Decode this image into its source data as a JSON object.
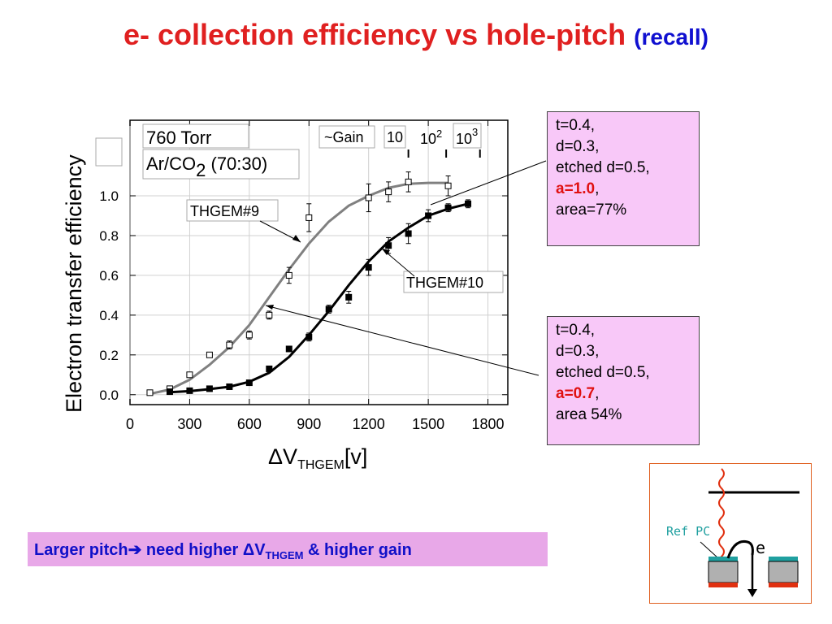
{
  "slide": {
    "title_main": "e- collection efficiency vs hole-pitch",
    "title_recall": "(recall)"
  },
  "info_boxes": [
    {
      "t": "t=0.4,",
      "d": "d=0.3,",
      "etched": "etched d=0.5,",
      "a": "a=1.0",
      "a_suffix": ",",
      "area": "area=77%"
    },
    {
      "t": "t=0.4,",
      "d": "d=0.3,",
      "etched": "etched d=0.5,",
      "a": "a=0.7",
      "a_suffix": ",",
      "area": "area 54%"
    }
  ],
  "conclusion": {
    "part1": "Larger pitch",
    "arrow": "➔",
    "part2": " need higher ",
    "delta": "Δ",
    "v": "V",
    "sub": "THGEM",
    "part3": " & higher gain"
  },
  "diagram": {
    "label": "Ref PC",
    "electron": "e"
  },
  "chart_data": {
    "type": "scatter",
    "xlabel_delta": "Δ",
    "xlabel_v": "V",
    "xlabel_sub": "THGEM",
    "xlabel_unit": "[v]",
    "ylabel": "Electron transfer efficiency",
    "xlim": [
      0,
      1900
    ],
    "ylim": [
      -0.05,
      1.38
    ],
    "x_ticks": [
      0,
      300,
      600,
      900,
      1200,
      1500,
      1800
    ],
    "y_ticks": [
      0.0,
      0.2,
      0.4,
      0.6,
      0.8,
      1.0
    ],
    "y_tick_labels": [
      "0.0",
      "0.2",
      "0.4",
      "0.6",
      "0.8",
      "1.0"
    ],
    "annotations": {
      "pressure": "760 Torr",
      "gas_main": "Ar/CO",
      "gas_sub": "2",
      "gas_ratio": " (70:30)",
      "gain_label": "~Gain",
      "gain_10": "10",
      "gain_100_base": "10",
      "gain_100_exp": "2",
      "gain_1000_base": "10",
      "gain_1000_exp": "3"
    },
    "gain_marks": [
      {
        "x": 1400,
        "label": "10"
      },
      {
        "x": 1590,
        "label": "10^2"
      },
      {
        "x": 1760,
        "label": "10^3"
      }
    ],
    "series": [
      {
        "name": "THGEM#9",
        "marker": "open-square",
        "color": "#808080",
        "points": [
          {
            "x": 100,
            "y": 0.01,
            "err": 0.01
          },
          {
            "x": 200,
            "y": 0.03,
            "err": 0.01
          },
          {
            "x": 300,
            "y": 0.1,
            "err": 0.01
          },
          {
            "x": 400,
            "y": 0.2,
            "err": 0.01
          },
          {
            "x": 500,
            "y": 0.25,
            "err": 0.02
          },
          {
            "x": 600,
            "y": 0.3,
            "err": 0.02
          },
          {
            "x": 700,
            "y": 0.4,
            "err": 0.02
          },
          {
            "x": 800,
            "y": 0.6,
            "err": 0.04
          },
          {
            "x": 900,
            "y": 0.89,
            "err": 0.07
          },
          {
            "x": 1200,
            "y": 0.99,
            "err": 0.07
          },
          {
            "x": 1300,
            "y": 1.02,
            "err": 0.05
          },
          {
            "x": 1400,
            "y": 1.07,
            "err": 0.05
          },
          {
            "x": 1600,
            "y": 1.05,
            "err": 0.05
          }
        ],
        "fit": [
          [
            100,
            0.004
          ],
          [
            200,
            0.026
          ],
          [
            300,
            0.075
          ],
          [
            400,
            0.15
          ],
          [
            500,
            0.24
          ],
          [
            600,
            0.35
          ],
          [
            700,
            0.49
          ],
          [
            800,
            0.63
          ],
          [
            900,
            0.76
          ],
          [
            1000,
            0.87
          ],
          [
            1100,
            0.95
          ],
          [
            1200,
            1.0
          ],
          [
            1300,
            1.04
          ],
          [
            1400,
            1.06
          ],
          [
            1500,
            1.065
          ],
          [
            1600,
            1.065
          ]
        ]
      },
      {
        "name": "THGEM#10",
        "marker": "filled-square",
        "color": "#000000",
        "points": [
          {
            "x": 200,
            "y": 0.015,
            "err": 0.005
          },
          {
            "x": 300,
            "y": 0.02,
            "err": 0.005
          },
          {
            "x": 400,
            "y": 0.03,
            "err": 0.005
          },
          {
            "x": 500,
            "y": 0.04,
            "err": 0.005
          },
          {
            "x": 600,
            "y": 0.06,
            "err": 0.005
          },
          {
            "x": 700,
            "y": 0.13,
            "err": 0.01
          },
          {
            "x": 800,
            "y": 0.23,
            "err": 0.01
          },
          {
            "x": 900,
            "y": 0.29,
            "err": 0.02
          },
          {
            "x": 1000,
            "y": 0.43,
            "err": 0.02
          },
          {
            "x": 1100,
            "y": 0.49,
            "err": 0.03
          },
          {
            "x": 1200,
            "y": 0.64,
            "err": 0.04
          },
          {
            "x": 1300,
            "y": 0.75,
            "err": 0.04
          },
          {
            "x": 1400,
            "y": 0.81,
            "err": 0.05
          },
          {
            "x": 1500,
            "y": 0.9,
            "err": 0.03
          },
          {
            "x": 1600,
            "y": 0.94,
            "err": 0.02
          },
          {
            "x": 1700,
            "y": 0.96,
            "err": 0.02
          }
        ],
        "fit": [
          [
            200,
            0.012
          ],
          [
            300,
            0.018
          ],
          [
            400,
            0.028
          ],
          [
            500,
            0.04
          ],
          [
            600,
            0.065
          ],
          [
            700,
            0.11
          ],
          [
            800,
            0.19
          ],
          [
            900,
            0.3
          ],
          [
            1000,
            0.42
          ],
          [
            1100,
            0.55
          ],
          [
            1200,
            0.67
          ],
          [
            1300,
            0.77
          ],
          [
            1400,
            0.84
          ],
          [
            1500,
            0.9
          ],
          [
            1600,
            0.935
          ],
          [
            1700,
            0.96
          ]
        ]
      }
    ]
  }
}
